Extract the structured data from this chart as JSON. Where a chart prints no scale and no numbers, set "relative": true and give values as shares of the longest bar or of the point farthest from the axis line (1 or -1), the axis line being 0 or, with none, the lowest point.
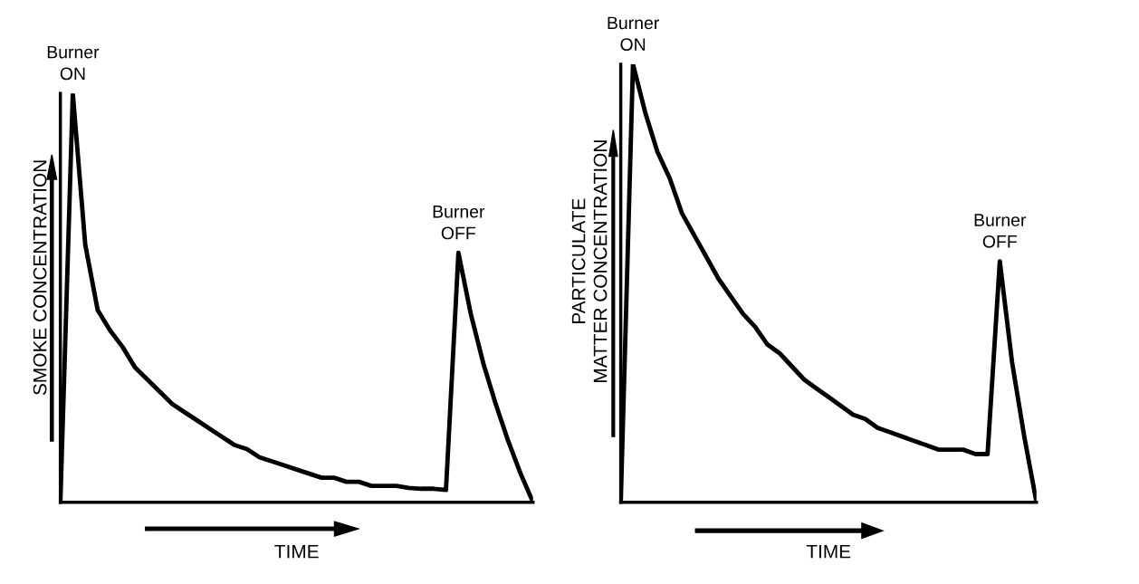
{
  "chart_data": [
    {
      "type": "line",
      "relative": true,
      "xlabel": "TIME",
      "ylabel": "SMOKE CONCENTRATION",
      "color": "#000000",
      "line_style": "solid",
      "marker": "none",
      "grid": false,
      "legend": false,
      "annotations": [
        "Burner\nON",
        "Burner\nOFF"
      ],
      "categories": [
        null,
        null,
        null,
        null,
        null,
        null,
        null,
        null,
        null,
        null,
        null,
        null,
        null,
        null,
        null,
        null,
        null,
        null,
        null,
        null,
        null,
        null,
        null,
        null,
        null,
        null,
        null,
        null,
        null,
        null,
        null,
        null,
        null,
        null,
        null,
        null,
        null,
        null,
        null
      ],
      "values": [
        0,
        1,
        0.63,
        0.47,
        0.42,
        0.38,
        0.33,
        0.3,
        0.27,
        0.24,
        0.22,
        0.2,
        0.18,
        0.16,
        0.14,
        0.13,
        0.11,
        0.1,
        0.09,
        0.08,
        0.07,
        0.06,
        0.06,
        0.05,
        0.05,
        0.04,
        0.04,
        0.04,
        0.035,
        0.033,
        0.033,
        0.03,
        0.61,
        0.46,
        0.34,
        0.24,
        0.15,
        0.07,
        0
      ]
    },
    {
      "type": "line",
      "relative": true,
      "xlabel": "TIME",
      "ylabel": "PARTICULATE\nMATTER CONCENTRATION",
      "color": "#000000",
      "line_style": "solid",
      "marker": "none",
      "grid": false,
      "legend": false,
      "annotations": [
        "Burner\nON",
        "Burner\nOFF"
      ],
      "categories": [
        null,
        null,
        null,
        null,
        null,
        null,
        null,
        null,
        null,
        null,
        null,
        null,
        null,
        null,
        null,
        null,
        null,
        null,
        null,
        null,
        null,
        null,
        null,
        null,
        null,
        null,
        null,
        null,
        null,
        null,
        null,
        null,
        null,
        null,
        null
      ],
      "values": [
        0,
        1,
        0.89,
        0.8,
        0.74,
        0.66,
        0.61,
        0.56,
        0.51,
        0.47,
        0.43,
        0.4,
        0.36,
        0.34,
        0.31,
        0.28,
        0.26,
        0.24,
        0.22,
        0.2,
        0.19,
        0.17,
        0.16,
        0.15,
        0.14,
        0.13,
        0.12,
        0.12,
        0.12,
        0.11,
        0.11,
        0.55,
        0.32,
        0.15,
        0
      ]
    }
  ]
}
